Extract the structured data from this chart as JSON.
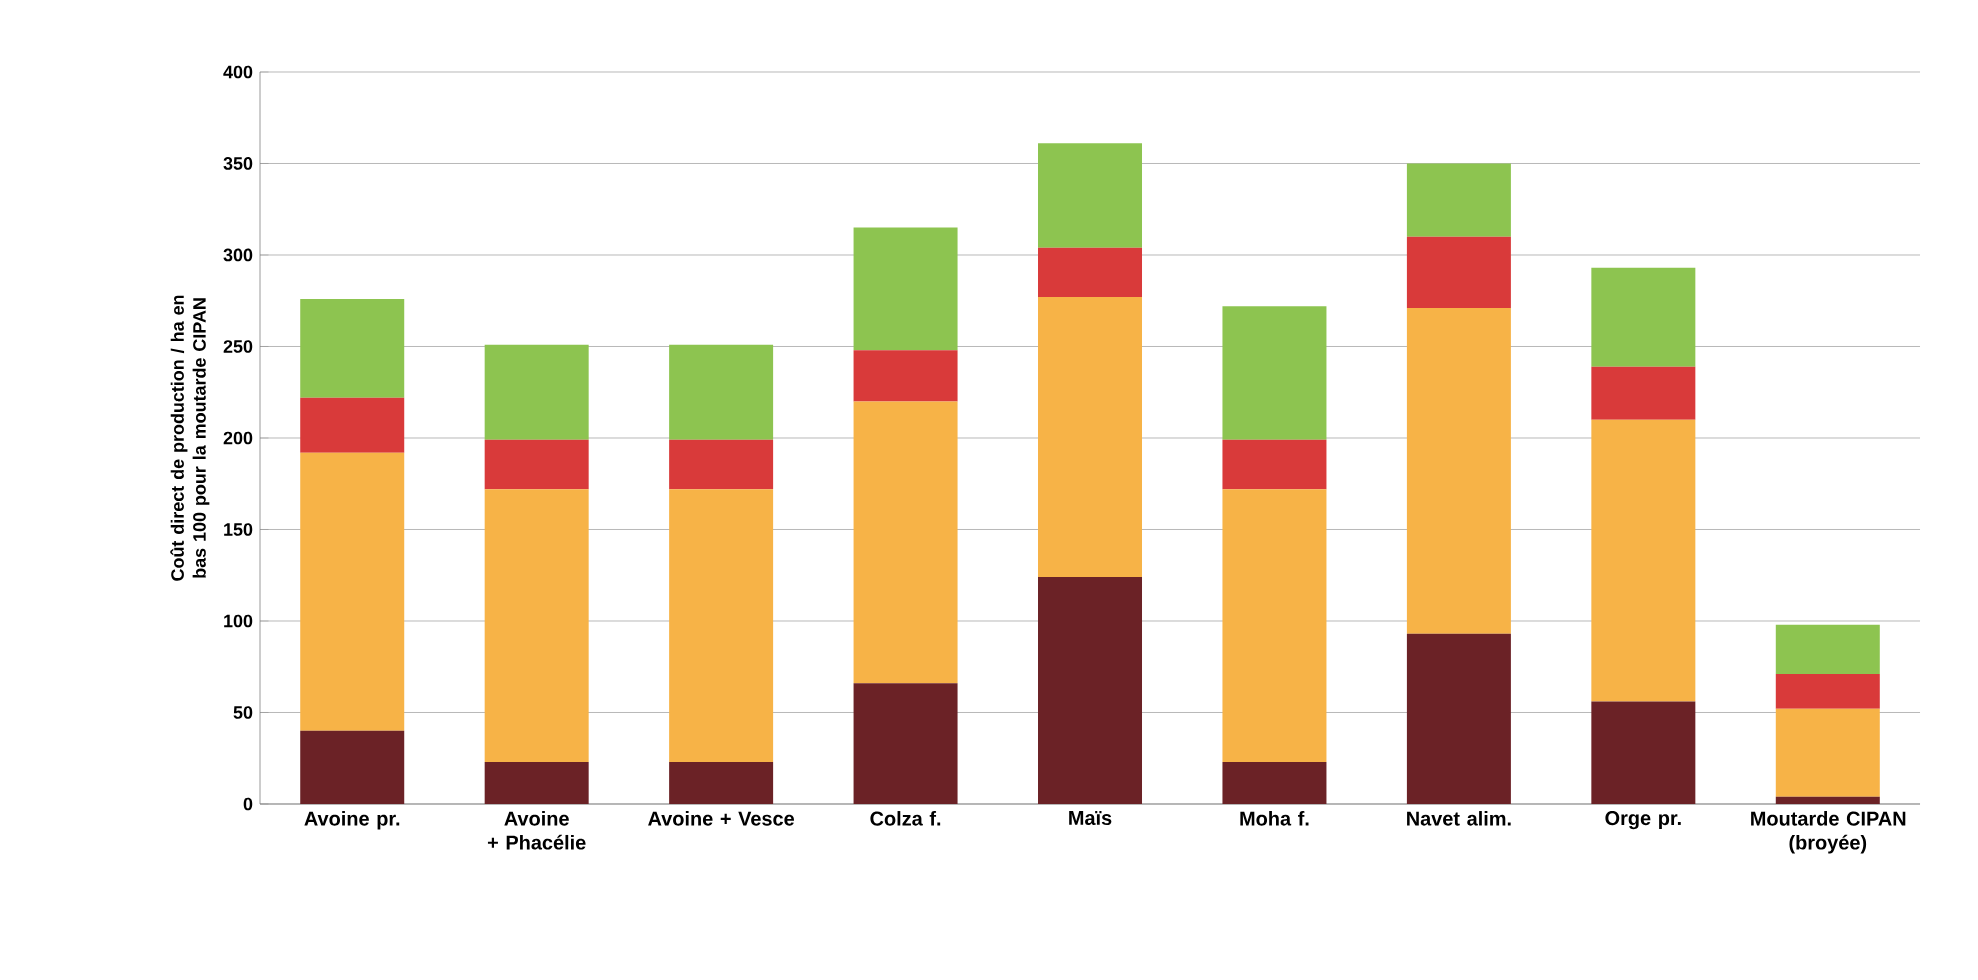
{
  "chart_data": {
    "type": "bar",
    "stacked": true,
    "ylabel": "Coût direct de production / ha en bas 100 pour la moutarde CIPAN",
    "categories": [
      "Avoine pr.",
      "Avoine + Phacélie",
      "Avoine + Vesce",
      "Colza f.",
      "Maïs",
      "Moha f.",
      "Navet alim.",
      "Orge pr.",
      "Moutarde CIPAN (broyée)"
    ],
    "series": [
      {
        "color": "#6b2226",
        "values": [
          40,
          23,
          23,
          66,
          124,
          23,
          93,
          56,
          4
        ]
      },
      {
        "color": "#f7b347",
        "values": [
          152,
          149,
          149,
          154,
          153,
          149,
          178,
          154,
          48
        ]
      },
      {
        "color": "#d93a3a",
        "values": [
          30,
          27,
          27,
          28,
          27,
          27,
          39,
          29,
          19
        ]
      },
      {
        "color": "#8dc450",
        "values": [
          54,
          52,
          52,
          67,
          57,
          73,
          40,
          54,
          27
        ]
      }
    ],
    "ylim": [
      0,
      400
    ],
    "yticks": [
      0,
      50,
      100,
      150,
      200,
      250,
      300,
      350,
      400
    ],
    "grid": "y"
  }
}
